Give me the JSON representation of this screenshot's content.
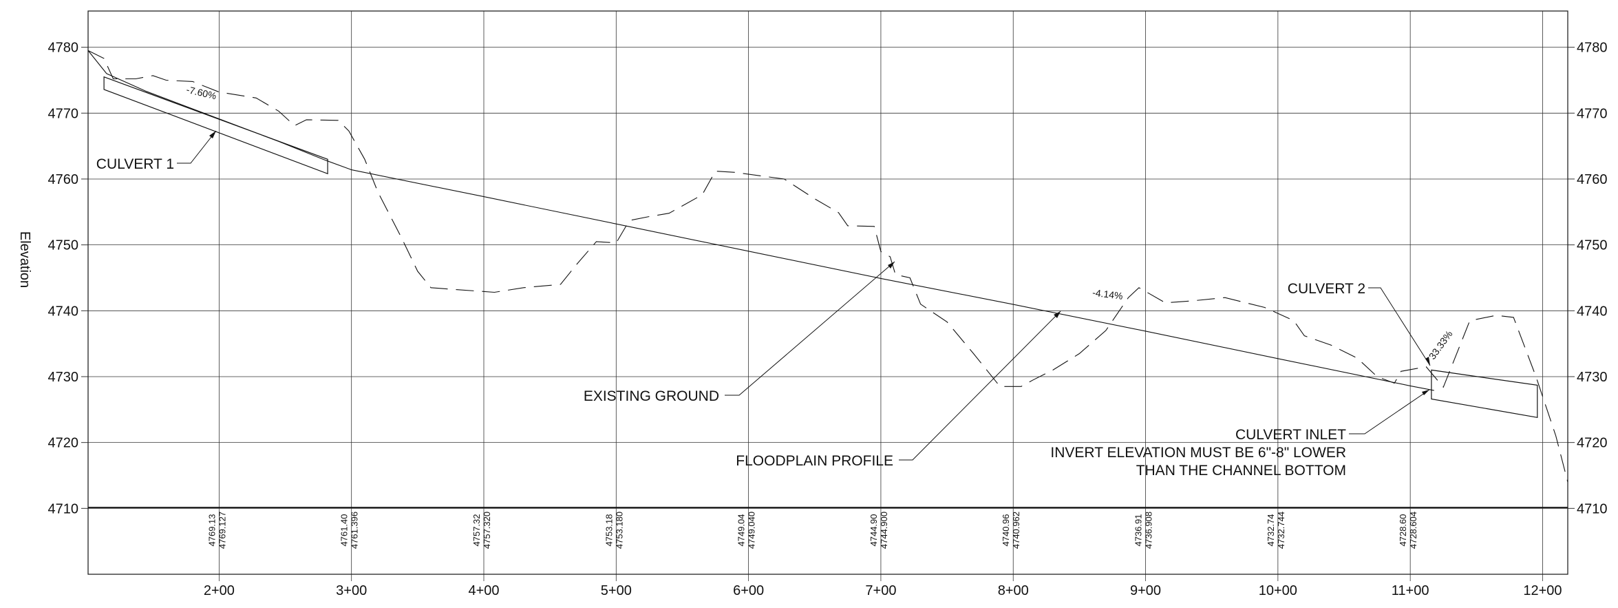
{
  "axes": {
    "y_label": "Elevation",
    "y_ticks": [
      4710,
      4720,
      4730,
      4740,
      4750,
      4760,
      4770,
      4780
    ],
    "x_ticks": [
      {
        "label": "2+00",
        "sta": 200
      },
      {
        "label": "3+00",
        "sta": 300
      },
      {
        "label": "4+00",
        "sta": 400
      },
      {
        "label": "5+00",
        "sta": 500
      },
      {
        "label": "6+00",
        "sta": 600
      },
      {
        "label": "7+00",
        "sta": 700
      },
      {
        "label": "8+00",
        "sta": 800
      },
      {
        "label": "9+00",
        "sta": 900
      },
      {
        "label": "10+00",
        "sta": 1000
      },
      {
        "label": "11+00",
        "sta": 1100
      },
      {
        "label": "12+00",
        "sta": 1200
      }
    ],
    "x_range": [
      101,
      1219
    ],
    "y_range": [
      4700,
      4785.5
    ]
  },
  "elevation_labels": [
    {
      "sta": 200,
      "existing": "4769.13",
      "design": "4769.127"
    },
    {
      "sta": 300,
      "existing": "4761.40",
      "design": "4761.396"
    },
    {
      "sta": 400,
      "existing": "4757.32",
      "design": "4757.320"
    },
    {
      "sta": 500,
      "existing": "4753.18",
      "design": "4753.180"
    },
    {
      "sta": 600,
      "existing": "4749.04",
      "design": "4749.040"
    },
    {
      "sta": 700,
      "existing": "4744.90",
      "design": "4744.900"
    },
    {
      "sta": 800,
      "existing": "4740.96",
      "design": "4740.962"
    },
    {
      "sta": 900,
      "existing": "4736.91",
      "design": "4736.908"
    },
    {
      "sta": 1000,
      "existing": "4732.74",
      "design": "4732.744"
    },
    {
      "sta": 1100,
      "existing": "4728.60",
      "design": "4728.604"
    }
  ],
  "grades": [
    {
      "text": "-7.60%",
      "sta": 186,
      "elev": 4772.6,
      "angle": 13
    },
    {
      "text": "-4.14%",
      "sta": 871,
      "elev": 4742.0,
      "angle": 7
    },
    {
      "text": "33.33%",
      "sta": 1125,
      "elev": 4734.5,
      "angle": -54
    }
  ],
  "annotations": {
    "culvert1": "CULVERT 1",
    "culvert2": "CULVERT 2",
    "existing_ground": "EXISTING GROUND",
    "floodplain_profile": "FLOODPLAIN PROFILE",
    "culvert_inlet": "CULVERT INLET",
    "invert_line1": "INVERT ELEVATION MUST BE  6\"-8\" LOWER",
    "invert_line2": "THAN THE CHANNEL BOTTOM"
  },
  "chart_data": {
    "type": "line",
    "xlabel": "",
    "ylabel": "Elevation",
    "ylim": [
      4710,
      4780
    ],
    "series": [
      {
        "points": [
          [
            101,
            4779.5
          ],
          [
            115,
            4776.0
          ],
          [
            145,
            4773.3
          ],
          [
            200,
            4769.13
          ],
          [
            245,
            4765.7
          ],
          [
            281,
            4762.8
          ],
          [
            300,
            4761.4
          ],
          [
            400,
            4757.32
          ],
          [
            500,
            4753.18
          ],
          [
            600,
            4749.04
          ],
          [
            700,
            4744.9
          ],
          [
            800,
            4740.96
          ],
          [
            900,
            4736.91
          ],
          [
            1000,
            4732.74
          ],
          [
            1100,
            4728.6
          ],
          [
            1118,
            4727.9
          ]
        ]
      },
      {
        "points": [
          [
            101,
            4779.5
          ],
          [
            113,
            4778.3
          ],
          [
            120,
            4775.2
          ],
          [
            137,
            4775.2
          ],
          [
            150,
            4775.7
          ],
          [
            160,
            4775.0
          ],
          [
            180,
            4774.8
          ],
          [
            200,
            4773.2
          ],
          [
            228,
            4772.3
          ],
          [
            245,
            4770.3
          ],
          [
            257,
            4768.1
          ],
          [
            266,
            4769.0
          ],
          [
            290,
            4768.9
          ],
          [
            298,
            4767.3
          ],
          [
            310,
            4763.0
          ],
          [
            320,
            4758.0
          ],
          [
            338,
            4751.0
          ],
          [
            350,
            4746.0
          ],
          [
            360,
            4743.5
          ],
          [
            380,
            4743.2
          ],
          [
            408,
            4742.8
          ],
          [
            430,
            4743.5
          ],
          [
            458,
            4744.0
          ],
          [
            470,
            4747.0
          ],
          [
            485,
            4750.5
          ],
          [
            500,
            4750.3
          ],
          [
            510,
            4753.7
          ],
          [
            525,
            4754.3
          ],
          [
            540,
            4754.8
          ],
          [
            565,
            4757.6
          ],
          [
            575,
            4761.2
          ],
          [
            590,
            4761.0
          ],
          [
            627,
            4760.0
          ],
          [
            650,
            4757.0
          ],
          [
            668,
            4754.9
          ],
          [
            675,
            4752.9
          ],
          [
            695,
            4752.8
          ],
          [
            700,
            4749.0
          ],
          [
            707,
            4748.2
          ],
          [
            711,
            4745.5
          ],
          [
            722,
            4745.0
          ],
          [
            730,
            4741.0
          ],
          [
            750,
            4738.3
          ],
          [
            770,
            4733.5
          ],
          [
            790,
            4728.5
          ],
          [
            806,
            4728.5
          ],
          [
            815,
            4729.5
          ],
          [
            830,
            4731.0
          ],
          [
            850,
            4733.5
          ],
          [
            870,
            4737.0
          ],
          [
            887,
            4742.0
          ],
          [
            895,
            4743.5
          ],
          [
            915,
            4741.2
          ],
          [
            935,
            4741.5
          ],
          [
            960,
            4742.0
          ],
          [
            990,
            4740.5
          ],
          [
            1012,
            4738.5
          ],
          [
            1020,
            4736.2
          ],
          [
            1040,
            4734.8
          ],
          [
            1060,
            4732.8
          ],
          [
            1075,
            4730.0
          ],
          [
            1088,
            4729.0
          ],
          [
            1093,
            4730.8
          ],
          [
            1112,
            4731.5
          ],
          [
            1125,
            4728.4
          ],
          [
            1145,
            4738.5
          ],
          [
            1165,
            4739.3
          ],
          [
            1178,
            4739.0
          ],
          [
            1195,
            4730.0
          ],
          [
            1210,
            4721.0
          ],
          [
            1219,
            4714.0
          ]
        ]
      },
      {
        "points": [
          [
            113,
            4775.5
          ],
          [
            282,
            4763.0
          ],
          [
            282,
            4760.8
          ],
          [
            113,
            4773.6
          ]
        ]
      },
      {
        "points": [
          [
            1116,
            4731.0
          ],
          [
            1196,
            4728.7
          ],
          [
            1196,
            4723.8
          ],
          [
            1116,
            4726.6
          ]
        ]
      }
    ]
  }
}
